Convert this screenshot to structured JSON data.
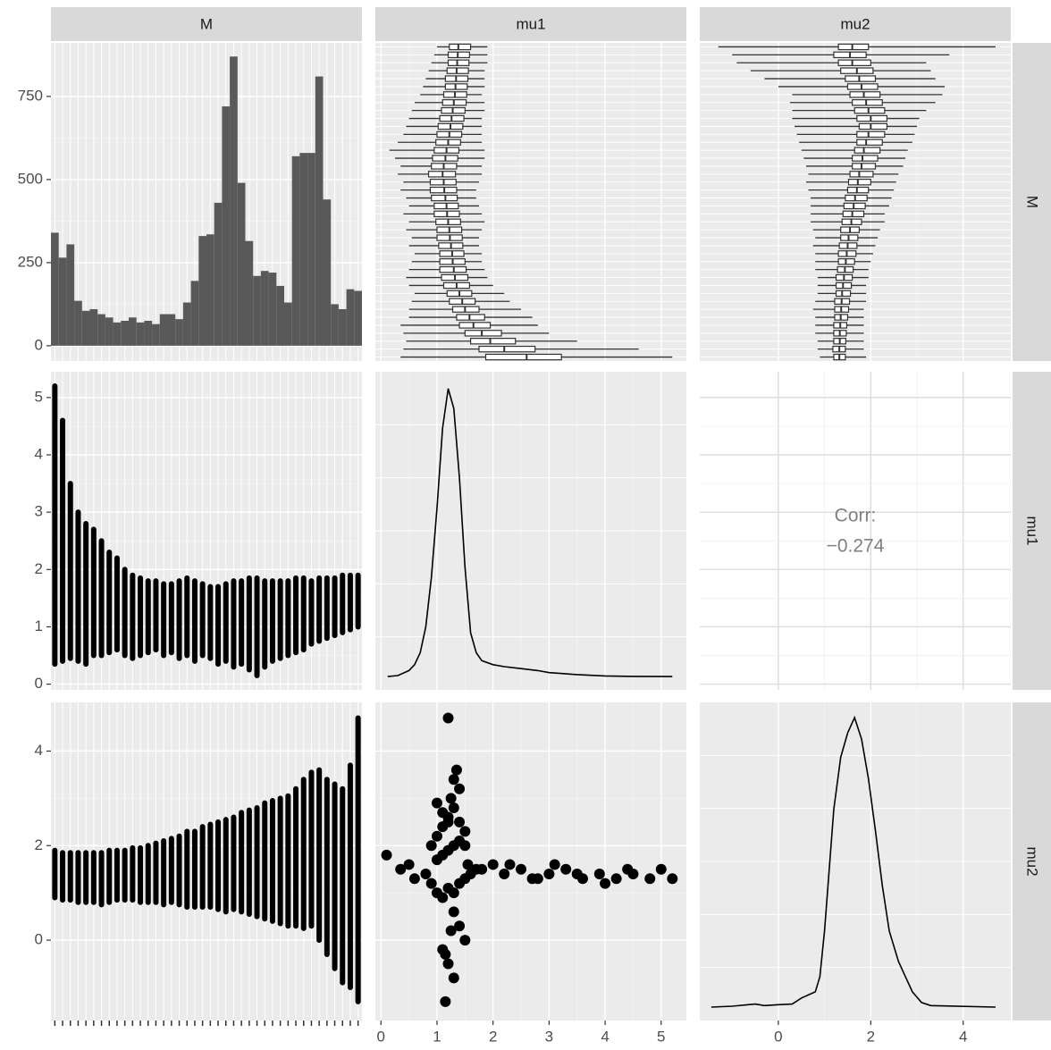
{
  "chart_data": {
    "type": "pairs",
    "variables": [
      "M",
      "mu1",
      "mu2"
    ],
    "M": {
      "counts": [
        340,
        265,
        305,
        135,
        105,
        110,
        95,
        85,
        70,
        75,
        85,
        70,
        75,
        65,
        95,
        95,
        80,
        130,
        195,
        330,
        335,
        430,
        720,
        870,
        490,
        315,
        210,
        225,
        220,
        180,
        130,
        570,
        580,
        580,
        810,
        440,
        125,
        110,
        170,
        165
      ],
      "ylim": [
        -46,
        911
      ],
      "yticks": [
        0,
        250,
        500,
        750
      ]
    },
    "mu1": {
      "lim": [
        -0.1,
        5.45
      ],
      "ticks": [
        0,
        1,
        2,
        3,
        4,
        5
      ],
      "groups": {
        "low": [
          0.35,
          0.4,
          0.45,
          0.4,
          0.35,
          0.5,
          0.5,
          0.55,
          0.6,
          0.5,
          0.45,
          0.5,
          0.55,
          0.6,
          0.5,
          0.55,
          0.45,
          0.5,
          0.4,
          0.5,
          0.45,
          0.35,
          0.4,
          0.3,
          0.35,
          0.25,
          0.15,
          0.3,
          0.4,
          0.45,
          0.5,
          0.55,
          0.6,
          0.7,
          0.75,
          0.8,
          0.85,
          0.9,
          0.95,
          1.0
        ],
        "q1": [
          1.87,
          1.75,
          1.6,
          1.5,
          1.4,
          1.35,
          1.28,
          1.22,
          1.18,
          1.12,
          1.08,
          1.05,
          1.05,
          1.05,
          1.03,
          1.0,
          1.0,
          0.98,
          0.95,
          0.95,
          0.9,
          0.88,
          0.88,
          0.85,
          0.9,
          0.92,
          0.95,
          0.98,
          1.0,
          1.02,
          1.05,
          1.08,
          1.1,
          1.12,
          1.15,
          1.15,
          1.18,
          1.2,
          1.2,
          1.22
        ],
        "median": [
          2.6,
          2.2,
          1.95,
          1.8,
          1.65,
          1.58,
          1.5,
          1.45,
          1.4,
          1.35,
          1.32,
          1.3,
          1.28,
          1.27,
          1.25,
          1.23,
          1.22,
          1.2,
          1.18,
          1.17,
          1.15,
          1.13,
          1.12,
          1.1,
          1.12,
          1.15,
          1.17,
          1.2,
          1.22,
          1.24,
          1.26,
          1.28,
          1.3,
          1.32,
          1.33,
          1.34,
          1.35,
          1.36,
          1.37,
          1.38
        ],
        "q3": [
          3.22,
          2.75,
          2.4,
          2.15,
          1.95,
          1.85,
          1.75,
          1.68,
          1.62,
          1.58,
          1.55,
          1.52,
          1.5,
          1.48,
          1.46,
          1.45,
          1.44,
          1.42,
          1.4,
          1.38,
          1.36,
          1.35,
          1.34,
          1.33,
          1.35,
          1.37,
          1.39,
          1.42,
          1.44,
          1.46,
          1.48,
          1.5,
          1.52,
          1.53,
          1.54,
          1.55,
          1.56,
          1.57,
          1.58,
          1.6
        ],
        "high": [
          5.2,
          4.6,
          3.5,
          3.0,
          2.8,
          2.7,
          2.5,
          2.3,
          2.2,
          2.0,
          1.9,
          1.85,
          1.8,
          1.8,
          1.75,
          1.75,
          1.8,
          1.85,
          1.8,
          1.75,
          1.7,
          1.7,
          1.75,
          1.8,
          1.8,
          1.85,
          1.85,
          1.8,
          1.8,
          1.8,
          1.8,
          1.85,
          1.85,
          1.8,
          1.85,
          1.85,
          1.85,
          1.9,
          1.9,
          1.9
        ]
      },
      "density": {
        "x": [
          0.12,
          0.3,
          0.5,
          0.6,
          0.7,
          0.8,
          0.9,
          1.0,
          1.1,
          1.2,
          1.3,
          1.4,
          1.5,
          1.6,
          1.7,
          1.8,
          2.0,
          2.2,
          2.5,
          2.8,
          3.0,
          3.5,
          4.0,
          4.5,
          5.2
        ],
        "y": [
          0,
          0.005,
          0.03,
          0.06,
          0.12,
          0.25,
          0.5,
          0.85,
          1.25,
          1.45,
          1.35,
          1.0,
          0.55,
          0.22,
          0.12,
          0.08,
          0.06,
          0.05,
          0.04,
          0.03,
          0.02,
          0.01,
          0.003,
          0.001,
          0
        ],
        "ylim": [
          -0.067,
          1.535
        ]
      }
    },
    "mu2": {
      "lim": [
        -1.7,
        5.03
      ],
      "ticks": [
        0,
        2,
        4
      ],
      "groups": {
        "low": [
          0.9,
          0.85,
          0.85,
          0.8,
          0.8,
          0.8,
          0.75,
          0.8,
          0.85,
          0.85,
          0.85,
          0.8,
          0.8,
          0.8,
          0.75,
          0.8,
          0.75,
          0.7,
          0.7,
          0.7,
          0.7,
          0.65,
          0.6,
          0.65,
          0.6,
          0.55,
          0.5,
          0.45,
          0.4,
          0.35,
          0.3,
          0.3,
          0.25,
          0.3,
          0.0,
          -0.3,
          -0.6,
          -0.9,
          -1.0,
          -1.3
        ],
        "q1": [
          1.2,
          1.18,
          1.2,
          1.2,
          1.2,
          1.22,
          1.22,
          1.22,
          1.25,
          1.25,
          1.25,
          1.28,
          1.3,
          1.3,
          1.32,
          1.35,
          1.35,
          1.38,
          1.4,
          1.42,
          1.45,
          1.5,
          1.52,
          1.55,
          1.6,
          1.6,
          1.65,
          1.7,
          1.7,
          1.75,
          1.7,
          1.65,
          1.6,
          1.55,
          1.5,
          1.45,
          1.35,
          1.3,
          1.2,
          1.3
        ],
        "median": [
          1.32,
          1.32,
          1.33,
          1.33,
          1.34,
          1.35,
          1.36,
          1.37,
          1.38,
          1.4,
          1.42,
          1.44,
          1.46,
          1.48,
          1.5,
          1.52,
          1.55,
          1.58,
          1.6,
          1.63,
          1.66,
          1.7,
          1.72,
          1.75,
          1.8,
          1.82,
          1.85,
          1.9,
          1.95,
          2.0,
          2.0,
          1.95,
          1.9,
          1.85,
          1.8,
          1.75,
          1.7,
          1.6,
          1.55,
          1.6
        ],
        "q3": [
          1.45,
          1.45,
          1.46,
          1.47,
          1.48,
          1.5,
          1.52,
          1.54,
          1.56,
          1.58,
          1.6,
          1.62,
          1.65,
          1.68,
          1.7,
          1.72,
          1.75,
          1.8,
          1.85,
          1.88,
          1.92,
          1.95,
          2.0,
          2.05,
          2.1,
          2.15,
          2.2,
          2.25,
          2.3,
          2.35,
          2.35,
          2.3,
          2.25,
          2.2,
          2.15,
          2.1,
          2.05,
          2.0,
          1.9,
          1.95
        ],
        "high": [
          1.9,
          1.85,
          1.85,
          1.85,
          1.85,
          1.85,
          1.85,
          1.9,
          1.9,
          1.9,
          1.95,
          1.95,
          2.0,
          2.05,
          2.1,
          2.15,
          2.2,
          2.3,
          2.3,
          2.4,
          2.45,
          2.5,
          2.55,
          2.6,
          2.7,
          2.75,
          2.8,
          2.9,
          2.95,
          3.0,
          3.05,
          3.2,
          3.4,
          3.55,
          3.6,
          3.4,
          3.3,
          3.2,
          3.7,
          4.7
        ]
      },
      "density": {
        "x": [
          -1.45,
          -1,
          -0.5,
          -0.3,
          0,
          0.3,
          0.5,
          0.8,
          0.9,
          1.0,
          1.1,
          1.2,
          1.35,
          1.5,
          1.65,
          1.8,
          1.95,
          2.1,
          2.25,
          2.4,
          2.6,
          2.75,
          2.9,
          3.1,
          3.3,
          4.7
        ],
        "y": [
          0,
          0.003,
          0.01,
          0.005,
          0.008,
          0.01,
          0.03,
          0.05,
          0.1,
          0.25,
          0.45,
          0.65,
          0.82,
          0.9,
          0.95,
          0.88,
          0.75,
          0.58,
          0.4,
          0.25,
          0.15,
          0.1,
          0.05,
          0.015,
          0.005,
          0
        ],
        "ylim": [
          -0.044,
          1.0
        ]
      }
    },
    "scatter": {
      "x": [
        1.2,
        1.15,
        0.1,
        0.35,
        0.5,
        0.6,
        0.8,
        0.9,
        1.0,
        1.1,
        1.2,
        1.3,
        1.4,
        1.5,
        1.6,
        1.7,
        0.9,
        1.0,
        1.1,
        1.2,
        1.3,
        1.4,
        1.5,
        1.0,
        1.1,
        1.2,
        1.3,
        1.4,
        1.35,
        1.3,
        1.4,
        1.25,
        1.5,
        1.55,
        1.0,
        1.1,
        1.2,
        1.3,
        1.4,
        1.5,
        1.8,
        2.0,
        2.2,
        2.5,
        2.8,
        3.0,
        3.3,
        3.6,
        3.9,
        4.2,
        4.5,
        4.8,
        5.0,
        5.2,
        2.3,
        2.7,
        3.1,
        3.5,
        4.0,
        4.4,
        1.1,
        1.2,
        1.3,
        1.25,
        1.15
      ],
      "y": [
        4.7,
        -1.3,
        1.8,
        1.5,
        1.6,
        1.3,
        1.4,
        1.2,
        1.0,
        0.9,
        1.1,
        1.0,
        1.2,
        1.3,
        1.4,
        1.5,
        2.0,
        2.2,
        2.4,
        2.6,
        2.8,
        2.5,
        2.3,
        1.7,
        1.8,
        1.9,
        2.0,
        2.1,
        3.6,
        3.4,
        3.2,
        3.0,
        2.0,
        1.6,
        2.9,
        2.7,
        2.5,
        0.6,
        0.3,
        0.0,
        1.5,
        1.6,
        1.4,
        1.5,
        1.3,
        1.4,
        1.5,
        1.3,
        1.4,
        1.3,
        1.4,
        1.3,
        1.5,
        1.3,
        1.6,
        1.3,
        1.6,
        1.4,
        1.2,
        1.5,
        -0.2,
        -0.5,
        -0.8,
        0.2,
        -0.3
      ]
    },
    "corr_text": [
      "Corr:",
      "−0.274"
    ]
  }
}
